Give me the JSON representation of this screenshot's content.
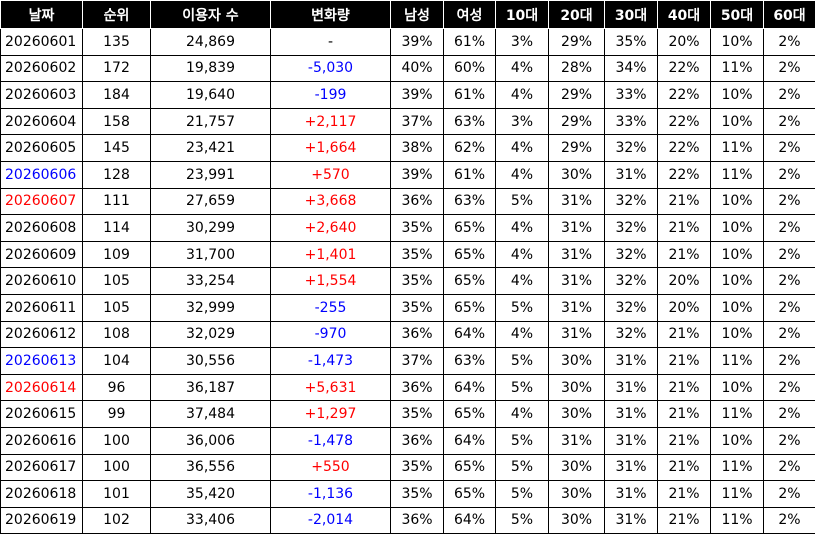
{
  "table": {
    "header": [
      "날짜",
      "순위",
      "이용자 수",
      "변화량",
      "남성",
      "여성",
      "10대",
      "20대",
      "30대",
      "40대",
      "50대",
      "60대"
    ],
    "rows": [
      [
        "20260601",
        "135",
        "24,869",
        "-",
        "39%",
        "61%",
        "3%",
        "29%",
        "35%",
        "20%",
        "10%",
        "2%"
      ],
      [
        "20260602",
        "172",
        "19,839",
        "-5,030",
        "40%",
        "60%",
        "4%",
        "28%",
        "34%",
        "22%",
        "11%",
        "2%"
      ],
      [
        "20260603",
        "184",
        "19,640",
        "-199",
        "39%",
        "61%",
        "4%",
        "29%",
        "33%",
        "22%",
        "10%",
        "2%"
      ],
      [
        "20260604",
        "158",
        "21,757",
        "+2,117",
        "37%",
        "63%",
        "3%",
        "29%",
        "33%",
        "22%",
        "10%",
        "2%"
      ],
      [
        "20260605",
        "145",
        "23,421",
        "+1,664",
        "38%",
        "62%",
        "4%",
        "29%",
        "32%",
        "22%",
        "11%",
        "2%"
      ],
      [
        "20260606",
        "128",
        "23,991",
        "+570",
        "39%",
        "61%",
        "4%",
        "30%",
        "31%",
        "22%",
        "11%",
        "2%"
      ],
      [
        "20260607",
        "111",
        "27,659",
        "+3,668",
        "36%",
        "63%",
        "5%",
        "31%",
        "32%",
        "21%",
        "10%",
        "2%"
      ],
      [
        "20260608",
        "114",
        "30,299",
        "+2,640",
        "35%",
        "65%",
        "4%",
        "31%",
        "32%",
        "21%",
        "10%",
        "2%"
      ],
      [
        "20260609",
        "109",
        "31,700",
        "+1,401",
        "35%",
        "65%",
        "4%",
        "31%",
        "32%",
        "21%",
        "10%",
        "2%"
      ],
      [
        "20260610",
        "105",
        "33,254",
        "+1,554",
        "35%",
        "65%",
        "4%",
        "31%",
        "32%",
        "20%",
        "10%",
        "2%"
      ],
      [
        "20260611",
        "105",
        "32,999",
        "-255",
        "35%",
        "65%",
        "5%",
        "31%",
        "32%",
        "20%",
        "10%",
        "2%"
      ],
      [
        "20260612",
        "108",
        "32,029",
        "-970",
        "36%",
        "64%",
        "4%",
        "31%",
        "32%",
        "21%",
        "10%",
        "2%"
      ],
      [
        "20260613",
        "104",
        "30,556",
        "-1,473",
        "37%",
        "63%",
        "5%",
        "30%",
        "31%",
        "21%",
        "11%",
        "2%"
      ],
      [
        "20260614",
        "96",
        "36,187",
        "+5,631",
        "36%",
        "64%",
        "5%",
        "30%",
        "31%",
        "21%",
        "10%",
        "2%"
      ],
      [
        "20260615",
        "99",
        "37,484",
        "+1,297",
        "35%",
        "65%",
        "4%",
        "30%",
        "31%",
        "21%",
        "11%",
        "2%"
      ],
      [
        "20260616",
        "100",
        "36,006",
        "-1,478",
        "36%",
        "64%",
        "5%",
        "31%",
        "31%",
        "21%",
        "10%",
        "2%"
      ],
      [
        "20260617",
        "100",
        "36,556",
        "+550",
        "35%",
        "65%",
        "5%",
        "30%",
        "31%",
        "21%",
        "11%",
        "2%"
      ],
      [
        "20260618",
        "101",
        "35,420",
        "-1,136",
        "35%",
        "65%",
        "5%",
        "30%",
        "31%",
        "21%",
        "11%",
        "2%"
      ],
      [
        "20260619",
        "102",
        "33,406",
        "-2,014",
        "36%",
        "64%",
        "5%",
        "30%",
        "31%",
        "21%",
        "11%",
        "2%"
      ]
    ],
    "date_colors": [
      "#000000",
      "#000000",
      "#000000",
      "#000000",
      "#000000",
      "#0000ff",
      "#ff0000",
      "#000000",
      "#000000",
      "#000000",
      "#000000",
      "#000000",
      "#0000ff",
      "#ff0000",
      "#000000",
      "#000000",
      "#000000",
      "#000000",
      "#000000"
    ],
    "positive_color": "#ff0000",
    "negative_color": "#0000ff"
  }
}
